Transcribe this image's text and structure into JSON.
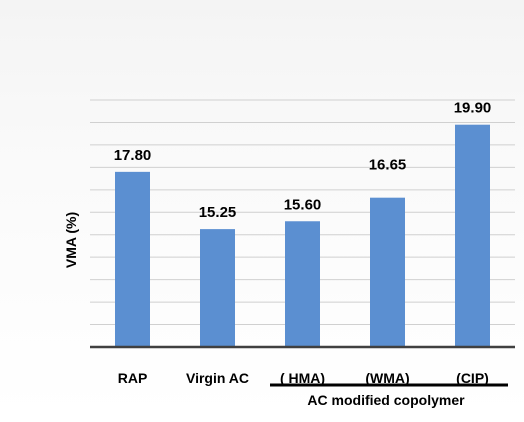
{
  "chart_data": {
    "type": "bar",
    "categories": [
      "RAP",
      "Virgin AC",
      "( HMA)",
      "(WMA)",
      "(CIP)"
    ],
    "values": [
      17.8,
      15.25,
      15.6,
      16.65,
      19.9
    ],
    "value_labels": [
      "17.80",
      "15.25",
      "15.60",
      "16.65",
      "19.90"
    ],
    "title": "",
    "xlabel": "",
    "ylabel": "VMA (%)",
    "ylim": [
      10,
      21
    ],
    "grid": true,
    "legend": "none",
    "group_label": "AC modified copolymer",
    "bar_color": "#5b8fd1"
  }
}
